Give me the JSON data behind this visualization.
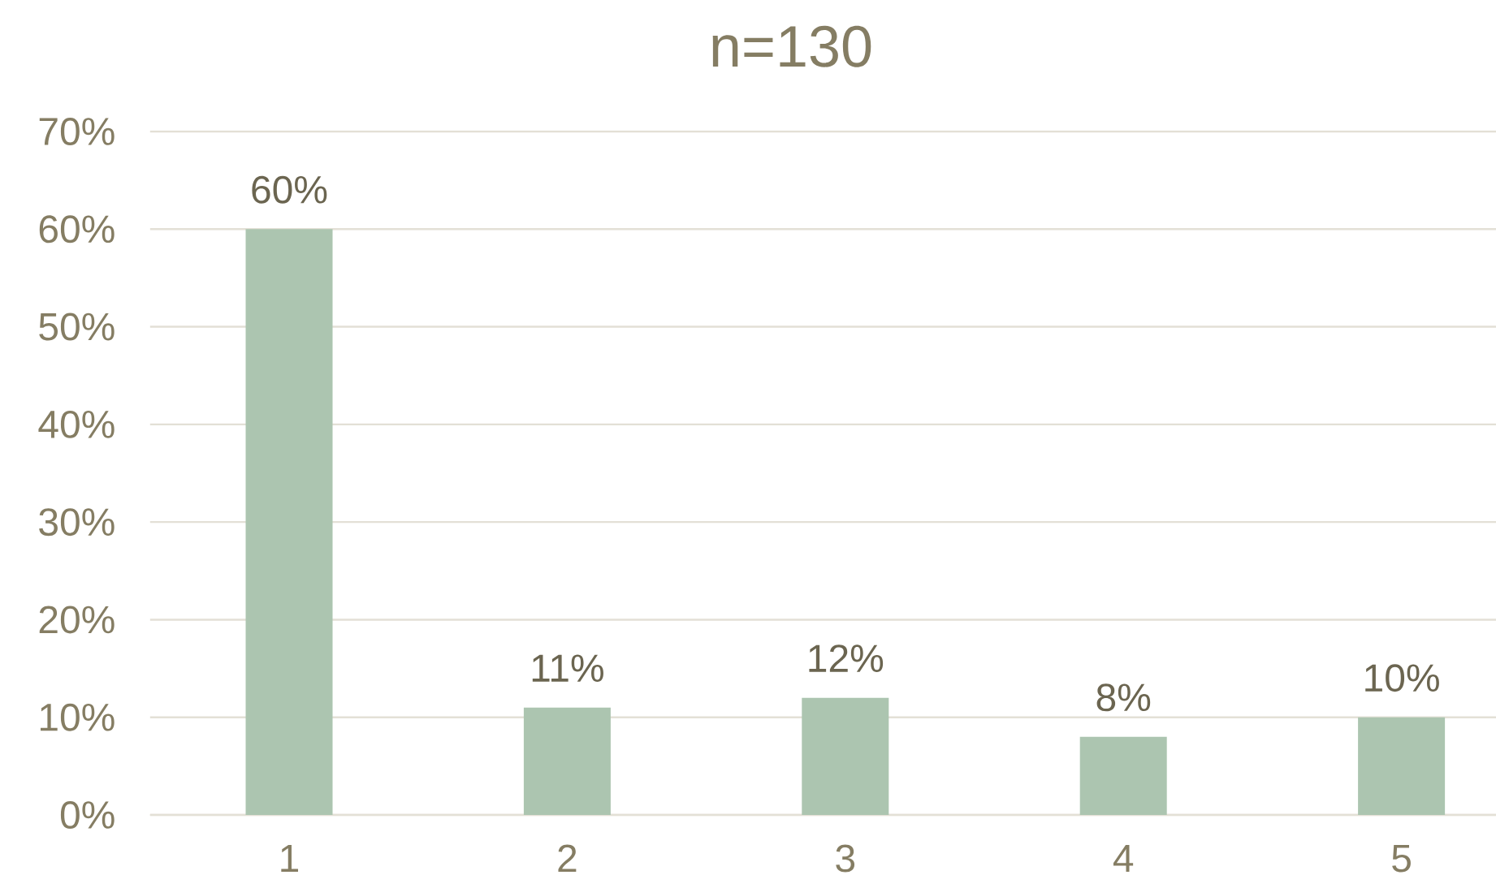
{
  "chart_data": {
    "type": "bar",
    "title": "n=130",
    "categories": [
      "1",
      "2",
      "3",
      "4",
      "5"
    ],
    "values": [
      60,
      11,
      12,
      8,
      10
    ],
    "value_labels": [
      "60%",
      "11%",
      "12%",
      "8%",
      "10%"
    ],
    "color": "#acc5b0",
    "ylim": [
      0,
      70
    ],
    "yticks": [
      {
        "value": 0,
        "label": "0%"
      },
      {
        "value": 10,
        "label": "10%"
      },
      {
        "value": 20,
        "label": "20%"
      },
      {
        "value": 30,
        "label": "30%"
      },
      {
        "value": 40,
        "label": "40%"
      },
      {
        "value": 50,
        "label": "50%"
      },
      {
        "value": 60,
        "label": "60%"
      },
      {
        "value": 70,
        "label": "70%"
      }
    ],
    "grid": "y"
  }
}
